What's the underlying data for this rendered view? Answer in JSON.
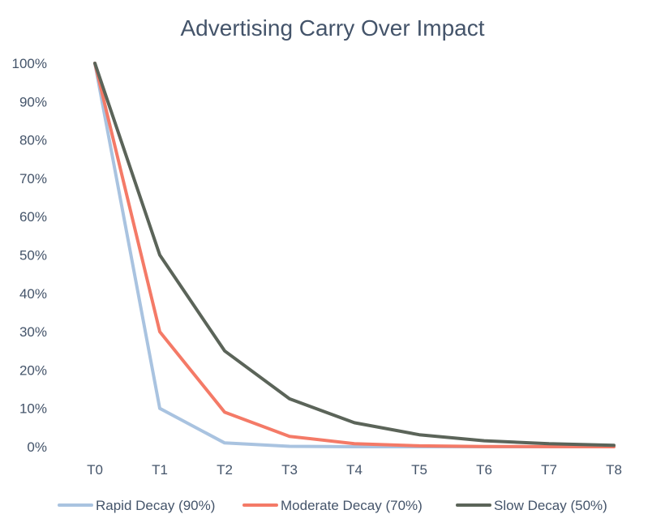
{
  "chart_data": {
    "type": "line",
    "title": "Advertising Carry Over Impact",
    "xlabel": "",
    "ylabel": "",
    "categories": [
      "T0",
      "T1",
      "T2",
      "T3",
      "T4",
      "T5",
      "T6",
      "T7",
      "T8"
    ],
    "ylim": [
      0,
      100
    ],
    "yticks": [
      "0%",
      "10%",
      "20%",
      "30%",
      "40%",
      "50%",
      "60%",
      "70%",
      "80%",
      "90%",
      "100%"
    ],
    "grid": false,
    "legend_position": "bottom",
    "series": [
      {
        "name": "Rapid Decay (90%)",
        "color": "#a9c3e0",
        "values": [
          100,
          10,
          1,
          0.1,
          0.01,
          0.001,
          0.0001,
          1e-05,
          1e-06
        ]
      },
      {
        "name": "Moderate Decay (70%)",
        "color": "#f47a67",
        "values": [
          100,
          30,
          9,
          2.7,
          0.81,
          0.243,
          0.0729,
          0.02187,
          0.006561
        ]
      },
      {
        "name": "Slow Decay (50%)",
        "color": "#5b6459",
        "values": [
          100,
          50,
          25,
          12.5,
          6.25,
          3.125,
          1.5625,
          0.78125,
          0.390625
        ]
      }
    ]
  }
}
